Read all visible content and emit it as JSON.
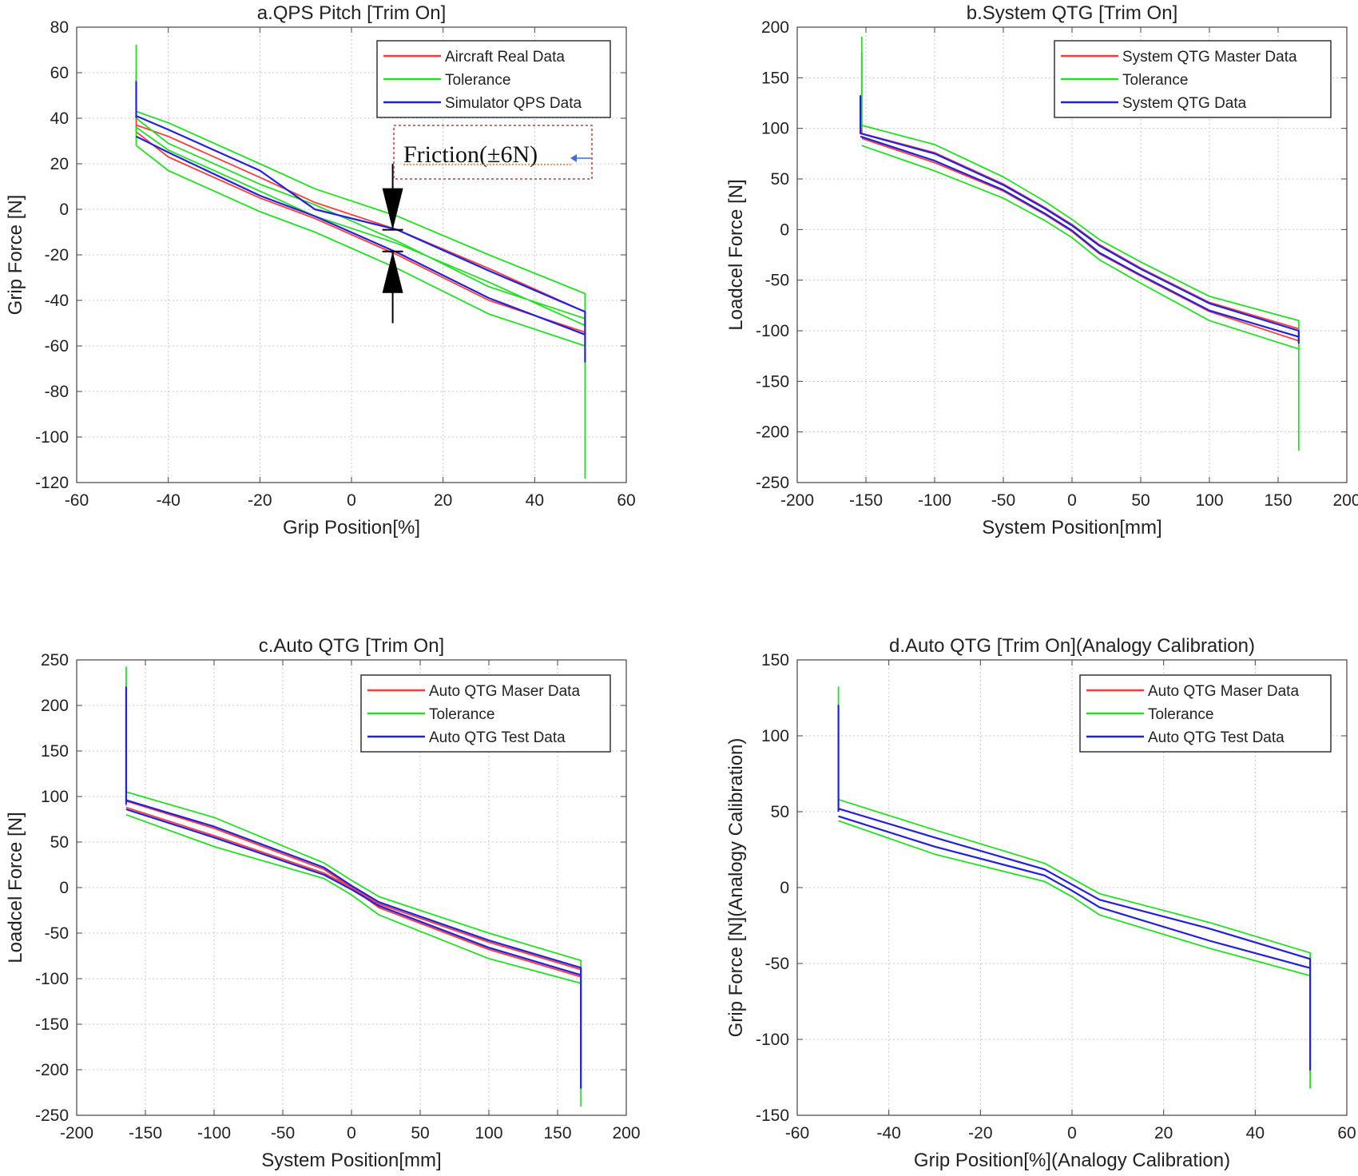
{
  "chart_data": [
    {
      "type": "line",
      "title": "a.QPS Pitch [Trim On]",
      "xlabel": "Grip Position[%]",
      "ylabel": "Grip Force [N]",
      "xlim": [
        -60,
        60
      ],
      "ylim": [
        -120,
        80
      ],
      "xticks": [
        -60,
        -40,
        -20,
        0,
        20,
        40,
        60
      ],
      "yticks": [
        -120,
        -100,
        -80,
        -60,
        -40,
        -20,
        0,
        20,
        40,
        60,
        80
      ],
      "grid": true,
      "legend": "top-right",
      "colors": {
        "red": "#ff3b3b",
        "green": "#22e022",
        "blue": "#2222dd"
      },
      "series": [
        {
          "name": "Aircraft Real Data",
          "color": "red",
          "x": [
            -47,
            -47,
            -47,
            -40,
            -20,
            -8,
            10,
            30,
            51,
            51,
            51,
            30,
            10,
            -8,
            -20,
            -40,
            -47
          ],
          "y": [
            34,
            60,
            37,
            32,
            14,
            3,
            -9,
            -26,
            -45,
            -54,
            -54,
            -40,
            -20,
            -4,
            5,
            23,
            34
          ]
        },
        {
          "name": "Tolerance",
          "color": "green",
          "x": [
            -47,
            -47,
            -47,
            -40,
            -20,
            -8,
            10,
            30,
            51,
            51,
            51,
            30,
            10,
            -8,
            -20,
            -40,
            -47
          ],
          "y": [
            40,
            72,
            43,
            38,
            20,
            9,
            -3,
            -20,
            -37,
            -118,
            -60,
            -46,
            -26,
            -10,
            -1,
            17,
            28
          ]
        },
        {
          "name": "Tolerance",
          "color": "green",
          "x": [
            -47,
            -47,
            -40,
            -20,
            -8,
            10,
            30,
            51,
            51,
            51,
            30,
            10,
            -8,
            -20,
            -40,
            -47
          ],
          "y": [
            28,
            36,
            26,
            8,
            -3,
            -15,
            -32,
            -51,
            -60,
            -48,
            -34,
            -14,
            2,
            11,
            29,
            40
          ]
        },
        {
          "name": "Simulator QPS Data",
          "color": "blue",
          "x": [
            -47,
            -47,
            -47,
            -40,
            -20,
            -8,
            10,
            30,
            51,
            51,
            51,
            30,
            10,
            -8,
            -20,
            -40,
            -47
          ],
          "y": [
            40,
            56,
            41,
            35,
            17,
            0,
            -9,
            -27,
            -45,
            -67,
            -55,
            -39,
            -19,
            -3,
            6,
            25,
            32
          ]
        }
      ],
      "annotations": [
        {
          "text": "Friction(±6N)"
        }
      ]
    },
    {
      "type": "line",
      "title": "b.System QTG [Trim On]",
      "xlabel": "System Position[mm]",
      "ylabel": "Loadcel Force [N]",
      "xlim": [
        -200,
        200
      ],
      "ylim": [
        -250,
        200
      ],
      "xticks": [
        -200,
        -150,
        -100,
        -50,
        0,
        50,
        100,
        150,
        200
      ],
      "yticks": [
        -250,
        -200,
        -150,
        -100,
        -50,
        0,
        50,
        100,
        150,
        200
      ],
      "grid": true,
      "legend": "top-right",
      "series": [
        {
          "name": "System QTG Master Data",
          "color": "red",
          "x": [
            -153,
            -153,
            -153,
            -100,
            -50,
            -20,
            0,
            20,
            50,
            100,
            165,
            165,
            165,
            100,
            50,
            20,
            0,
            -20,
            -50,
            -100,
            -153
          ],
          "y": [
            95,
            175,
            95,
            76,
            45,
            22,
            5,
            -15,
            -38,
            -72,
            -98,
            -110,
            -110,
            -81,
            -46,
            -24,
            -2,
            15,
            38,
            66,
            90
          ]
        },
        {
          "name": "Tolerance",
          "color": "green",
          "x": [
            -153,
            -153,
            -153,
            -100,
            -50,
            -20,
            0,
            20,
            50,
            100,
            165,
            165,
            165,
            100,
            50,
            20,
            0,
            -20,
            -50,
            -100,
            -153
          ],
          "y": [
            100,
            190,
            103,
            84,
            52,
            28,
            10,
            -10,
            -32,
            -66,
            -90,
            -218,
            -118,
            -90,
            -53,
            -30,
            -8,
            9,
            31,
            58,
            83
          ]
        },
        {
          "name": "System QTG Data",
          "color": "blue",
          "x": [
            -154,
            -154,
            -154,
            -100,
            -50,
            -20,
            0,
            20,
            50,
            100,
            165,
            165,
            165,
            100,
            50,
            20,
            0,
            -20,
            -50,
            -100,
            -154
          ],
          "y": [
            95,
            132,
            95,
            75,
            44,
            21,
            4,
            -16,
            -39,
            -73,
            -100,
            -112,
            -106,
            -80,
            -45,
            -23,
            -1,
            16,
            39,
            68,
            92
          ]
        }
      ]
    },
    {
      "type": "line",
      "title": "c.Auto QTG [Trim On]",
      "xlabel": "System Position[mm]",
      "ylabel": "Loadcel Force [N]",
      "xlim": [
        -200,
        200
      ],
      "ylim": [
        -250,
        250
      ],
      "xticks": [
        -200,
        -150,
        -100,
        -50,
        0,
        50,
        100,
        150,
        200
      ],
      "yticks": [
        -250,
        -200,
        -150,
        -100,
        -50,
        0,
        50,
        100,
        150,
        200,
        250
      ],
      "grid": true,
      "legend": "top-right",
      "series": [
        {
          "name": "Auto QTG Maser Data",
          "color": "red",
          "x": [
            -164,
            -164,
            -164,
            -100,
            -20,
            0,
            20,
            100,
            167,
            167,
            167,
            100,
            20,
            0,
            -20,
            -100,
            -164
          ],
          "y": [
            90,
            220,
            95,
            65,
            20,
            0,
            -18,
            -60,
            -90,
            -200,
            -98,
            -68,
            -22,
            0,
            16,
            57,
            88
          ]
        },
        {
          "name": "Tolerance",
          "color": "green",
          "x": [
            -164,
            -164,
            -164,
            -100,
            -20,
            0,
            20,
            100,
            167,
            167,
            167,
            100,
            20,
            0,
            -20,
            -100,
            -164
          ],
          "y": [
            102,
            242,
            105,
            77,
            27,
            8,
            -10,
            -50,
            -80,
            -240,
            -105,
            -78,
            -30,
            -8,
            10,
            45,
            80
          ]
        },
        {
          "name": "Auto QTG Test Data",
          "color": "blue",
          "x": [
            -164,
            -164,
            -164,
            -100,
            -20,
            0,
            20,
            100,
            167,
            167,
            167,
            100,
            20,
            0,
            -20,
            -100,
            -164
          ],
          "y": [
            92,
            220,
            96,
            67,
            22,
            2,
            -16,
            -58,
            -88,
            -220,
            -96,
            -66,
            -20,
            -2,
            14,
            55,
            86
          ]
        }
      ]
    },
    {
      "type": "line",
      "title": "d.Auto QTG [Trim On](Analogy Calibration)",
      "xlabel": "Grip Position[%](Analogy Calibration)",
      "ylabel": "Grip Force [N](Analogy Calibration)",
      "xlim": [
        -60,
        60
      ],
      "ylim": [
        -150,
        150
      ],
      "xticks": [
        -60,
        -40,
        -20,
        0,
        20,
        40,
        60
      ],
      "yticks": [
        -150,
        -100,
        -50,
        0,
        50,
        100,
        150
      ],
      "grid": true,
      "legend": "top-right",
      "series": [
        {
          "name": "Auto QTG Maser Data",
          "color": "red",
          "x": [
            -51,
            -51,
            -51,
            -30,
            -6,
            0,
            6,
            30,
            52,
            52,
            52,
            30,
            6,
            0,
            -6,
            -30,
            -51
          ],
          "y": [
            50,
            120,
            52,
            33,
            12,
            2,
            -8,
            -27,
            -47,
            -120,
            -53,
            -35,
            -13,
            -2,
            8,
            27,
            47
          ]
        },
        {
          "name": "Tolerance",
          "color": "green",
          "x": [
            -51,
            -51,
            -51,
            -30,
            -6,
            0,
            6,
            30,
            52,
            52,
            52,
            30,
            6,
            0,
            -6,
            -30,
            -51
          ],
          "y": [
            55,
            132,
            58,
            38,
            16,
            6,
            -4,
            -23,
            -43,
            -132,
            -58,
            -40,
            -18,
            -6,
            4,
            22,
            44
          ]
        },
        {
          "name": "Auto QTG Test Data",
          "color": "blue",
          "x": [
            -51,
            -51,
            -51,
            -30,
            -6,
            0,
            6,
            30,
            52,
            52,
            52,
            30,
            6,
            0,
            -6,
            -30,
            -51
          ],
          "y": [
            50,
            120,
            52,
            33,
            12,
            2,
            -8,
            -27,
            -47,
            -120,
            -53,
            -35,
            -13,
            -2,
            8,
            27,
            47
          ]
        }
      ]
    }
  ]
}
